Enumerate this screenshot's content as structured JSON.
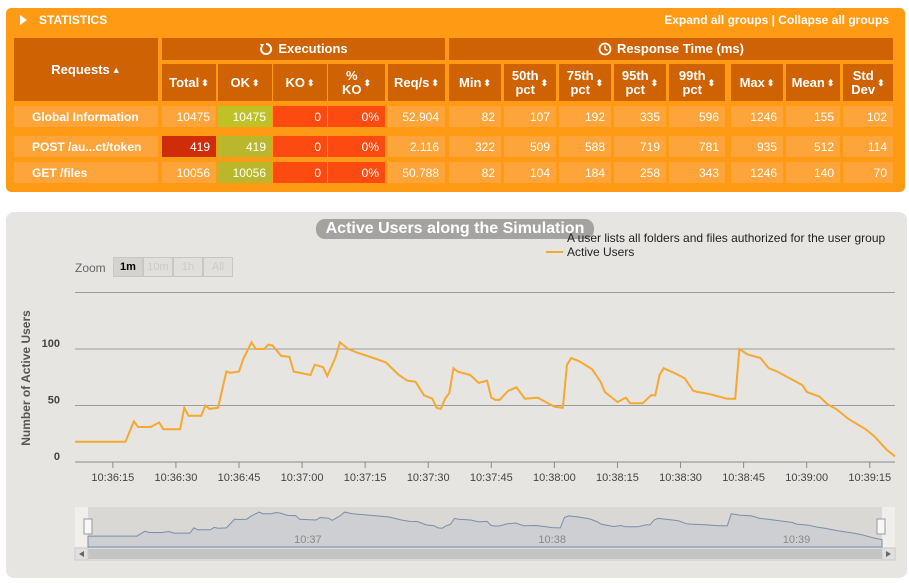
{
  "stats": {
    "title": "STATISTICS",
    "expand_all": "Expand all groups",
    "separator": "|",
    "collapse_all": "Collapse all groups",
    "requests_header": "Requests",
    "executions_header": "Executions",
    "response_time_header": "Response Time (ms)",
    "columns": [
      "Total",
      "OK",
      "KO",
      "% KO",
      "Req/s",
      "Min",
      "50th pct",
      "75th pct",
      "95th pct",
      "99th pct",
      "Max",
      "Mean",
      "Std Dev"
    ],
    "rows": [
      {
        "name": "Global Information",
        "values": [
          "10475",
          "10475",
          "0",
          "0%",
          "52.904",
          "82",
          "107",
          "192",
          "335",
          "596",
          "1246",
          "155",
          "102"
        ]
      },
      {
        "name": "POST /au...ct/token",
        "values": [
          "419",
          "419",
          "0",
          "0%",
          "2.116",
          "322",
          "509",
          "588",
          "719",
          "781",
          "935",
          "512",
          "114"
        ]
      },
      {
        "name": "GET /files",
        "values": [
          "10056",
          "10056",
          "0",
          "0%",
          "50.788",
          "82",
          "104",
          "184",
          "258",
          "343",
          "1246",
          "140",
          "70"
        ]
      }
    ]
  },
  "chart": {
    "title": "Active Users along the Simulation",
    "legend": [
      "A user lists all folders and files authorized for the user group",
      "Active Users"
    ],
    "zoom_label": "Zoom",
    "zoom_buttons": [
      "1m",
      "10m",
      "1h",
      "All"
    ],
    "active_zoom": "1m",
    "ylabel": "Number of Active Users",
    "colors": {
      "series": "#f6a82f",
      "navigator": "#7c8ea8"
    }
  },
  "chart_data": {
    "type": "line",
    "title": "Active Users along the Simulation",
    "xlabel": "",
    "ylabel": "Number of Active Users",
    "ylim": [
      0,
      150
    ],
    "yticks": [
      0,
      50,
      100
    ],
    "x_tick_labels": [
      "10:36:15",
      "10:36:30",
      "10:36:45",
      "10:37:00",
      "10:37:15",
      "10:37:30",
      "10:37:45",
      "10:38:00",
      "10:38:15",
      "10:38:30",
      "10:38:45",
      "10:39:00",
      "10:39:15"
    ],
    "navigator_tick_labels": [
      "10:37",
      "10:38",
      "10:39"
    ],
    "grid": true,
    "legend_position": "top-right",
    "series": [
      {
        "name": "Active Users",
        "points": [
          [
            "10:36:06",
            18
          ],
          [
            "10:36:18",
            18
          ],
          [
            "10:36:20",
            36
          ],
          [
            "10:36:21",
            31
          ],
          [
            "10:36:24",
            31
          ],
          [
            "10:36:26",
            35
          ],
          [
            "10:36:27",
            29
          ],
          [
            "10:36:31",
            29
          ],
          [
            "10:36:32",
            48
          ],
          [
            "10:36:33",
            41
          ],
          [
            "10:36:36",
            41
          ],
          [
            "10:36:37",
            50
          ],
          [
            "10:36:38",
            47
          ],
          [
            "10:36:40",
            48
          ],
          [
            "10:36:42",
            80
          ],
          [
            "10:36:43",
            79
          ],
          [
            "10:36:45",
            80
          ],
          [
            "10:36:46",
            91
          ],
          [
            "10:36:48",
            106
          ],
          [
            "10:36:49",
            100
          ],
          [
            "10:36:51",
            100
          ],
          [
            "10:36:52",
            104
          ],
          [
            "10:36:53",
            103
          ],
          [
            "10:36:55",
            94
          ],
          [
            "10:36:57",
            93
          ],
          [
            "10:36:58",
            80
          ],
          [
            "10:37:02",
            77
          ],
          [
            "10:37:03",
            86
          ],
          [
            "10:37:05",
            84
          ],
          [
            "10:37:06",
            76
          ],
          [
            "10:37:08",
            93
          ],
          [
            "10:37:09",
            106
          ],
          [
            "10:37:11",
            100
          ],
          [
            "10:37:13",
            97
          ],
          [
            "10:37:17",
            92
          ],
          [
            "10:37:20",
            88
          ],
          [
            "10:37:23",
            77
          ],
          [
            "10:37:25",
            72
          ],
          [
            "10:37:27",
            71
          ],
          [
            "10:37:29",
            59
          ],
          [
            "10:37:31",
            56
          ],
          [
            "10:37:32",
            48
          ],
          [
            "10:37:33",
            47
          ],
          [
            "10:37:34",
            56
          ],
          [
            "10:37:35",
            61
          ],
          [
            "10:37:36",
            83
          ],
          [
            "10:37:37",
            80
          ],
          [
            "10:37:40",
            77
          ],
          [
            "10:37:42",
            70
          ],
          [
            "10:37:44",
            72
          ],
          [
            "10:37:45",
            57
          ],
          [
            "10:37:46",
            55
          ],
          [
            "10:37:47",
            55
          ],
          [
            "10:37:49",
            63
          ],
          [
            "10:37:51",
            66
          ],
          [
            "10:37:53",
            56
          ],
          [
            "10:37:56",
            57
          ],
          [
            "10:37:58",
            53
          ],
          [
            "10:38:00",
            49
          ],
          [
            "10:38:02",
            48
          ],
          [
            "10:38:03",
            86
          ],
          [
            "10:38:04",
            92
          ],
          [
            "10:38:06",
            89
          ],
          [
            "10:38:09",
            82
          ],
          [
            "10:38:11",
            71
          ],
          [
            "10:38:12",
            62
          ],
          [
            "10:38:15",
            53
          ],
          [
            "10:38:17",
            57
          ],
          [
            "10:38:18",
            52
          ],
          [
            "10:38:21",
            52
          ],
          [
            "10:38:23",
            59
          ],
          [
            "10:38:24",
            59
          ],
          [
            "10:38:25",
            77
          ],
          [
            "10:38:26",
            83
          ],
          [
            "10:38:29",
            78
          ],
          [
            "10:38:31",
            74
          ],
          [
            "10:38:33",
            63
          ],
          [
            "10:38:34",
            62
          ],
          [
            "10:38:37",
            60
          ],
          [
            "10:38:41",
            56
          ],
          [
            "10:38:43",
            56
          ],
          [
            "10:38:44",
            100
          ],
          [
            "10:38:46",
            95
          ],
          [
            "10:38:49",
            92
          ],
          [
            "10:38:51",
            83
          ],
          [
            "10:38:53",
            80
          ],
          [
            "10:38:57",
            72
          ],
          [
            "10:38:59",
            68
          ],
          [
            "10:39:00",
            62
          ],
          [
            "10:39:03",
            58
          ],
          [
            "10:39:05",
            51
          ],
          [
            "10:39:07",
            47
          ],
          [
            "10:39:10",
            38
          ],
          [
            "10:39:14",
            29
          ],
          [
            "10:39:16",
            23
          ],
          [
            "10:39:19",
            11
          ],
          [
            "10:39:21",
            5
          ]
        ]
      }
    ]
  }
}
